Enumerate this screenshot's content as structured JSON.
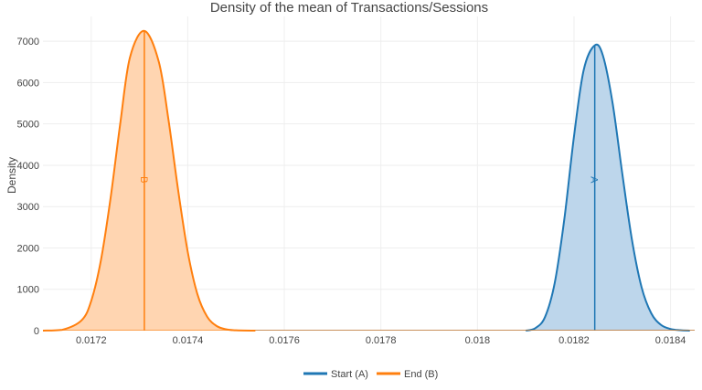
{
  "chart_data": {
    "type": "area",
    "title": "Density of the mean of Transactions/Sessions",
    "xlabel": "",
    "ylabel": "Density",
    "xlim": [
      0.0171,
      0.01845
    ],
    "ylim": [
      0,
      7600
    ],
    "x_ticks": [
      0.0172,
      0.0174,
      0.0176,
      0.0178,
      0.018,
      0.0182,
      0.0184
    ],
    "x_tick_labels": [
      "0.0172",
      "0.0174",
      "0.0176",
      "0.0178",
      "0.018",
      "0.0182",
      "0.0184"
    ],
    "y_ticks": [
      0,
      1000,
      2000,
      3000,
      4000,
      5000,
      6000,
      7000
    ],
    "y_tick_labels": [
      "0",
      "1000",
      "2000",
      "3000",
      "4000",
      "5000",
      "6000",
      "7000"
    ],
    "grid": true,
    "legend_position": "bottom",
    "series": [
      {
        "name": "Start (A)",
        "mean_label": "A",
        "color": "#1f77b4",
        "fill": "#b9d4ea",
        "mean": 0.018243,
        "peak_density": 6900,
        "x": [
          0.0181,
          0.01812,
          0.01814,
          0.01816,
          0.01818,
          0.0182,
          0.01822,
          0.018243,
          0.01826,
          0.01828,
          0.0183,
          0.01832,
          0.01834,
          0.01836,
          0.01838,
          0.0184,
          0.01842,
          0.01844
        ],
        "y": [
          0,
          60,
          330,
          1150,
          2700,
          4700,
          6300,
          6900,
          6650,
          5500,
          3800,
          2200,
          1050,
          420,
          140,
          40,
          10,
          0
        ]
      },
      {
        "name": "End (B)",
        "mean_label": "B",
        "color": "#ff7f0e",
        "fill": "#ffd3ad",
        "mean": 0.01731,
        "peak_density": 7250,
        "x": [
          0.0171,
          0.01714,
          0.01718,
          0.0172,
          0.01722,
          0.01724,
          0.01726,
          0.01728,
          0.01731,
          0.01734,
          0.01736,
          0.01738,
          0.0174,
          0.01742,
          0.01744,
          0.01746,
          0.01748,
          0.0175,
          0.01754
        ],
        "y": [
          0,
          20,
          250,
          720,
          1700,
          3200,
          5000,
          6600,
          7250,
          6500,
          5100,
          3400,
          1900,
          880,
          340,
          110,
          30,
          8,
          0
        ]
      }
    ]
  }
}
